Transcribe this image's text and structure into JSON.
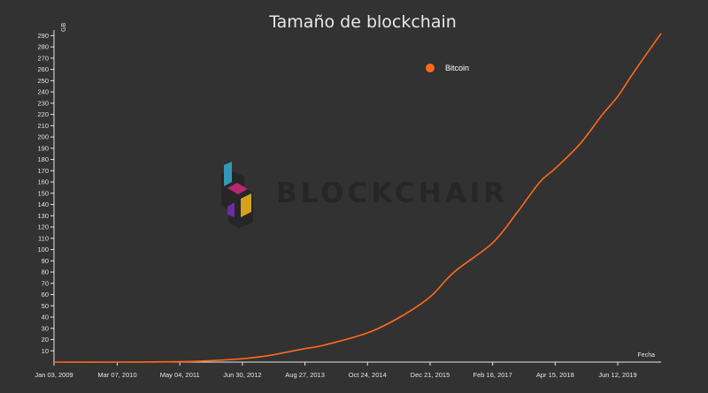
{
  "chart_data": {
    "type": "line",
    "title": "Tamaño de blockchain",
    "ylabel": "GB",
    "xlabel": "Fecha",
    "ylim": [
      0,
      295
    ],
    "yticks": [
      10,
      20,
      30,
      40,
      50,
      60,
      70,
      80,
      90,
      100,
      110,
      120,
      130,
      140,
      150,
      160,
      170,
      180,
      190,
      200,
      210,
      220,
      230,
      240,
      250,
      260,
      270,
      280,
      290
    ],
    "xlim": [
      "2009-01-03",
      "2020-03-31"
    ],
    "xtick_labels": [
      {
        "date": "2009-01-03",
        "label": "Jan 03, 2009"
      },
      {
        "date": "2010-03-07",
        "label": "Mar 07, 2010"
      },
      {
        "date": "2011-05-04",
        "label": "May 04, 2011"
      },
      {
        "date": "2012-06-30",
        "label": "Jun 30, 2012"
      },
      {
        "date": "2013-08-27",
        "label": "Aug 27, 2013"
      },
      {
        "date": "2014-10-24",
        "label": "Oct 24, 2014"
      },
      {
        "date": "2015-12-21",
        "label": "Dec 21, 2015"
      },
      {
        "date": "2017-02-16",
        "label": "Feb 16, 2017"
      },
      {
        "date": "2018-04-15",
        "label": "Apr 15, 2018"
      },
      {
        "date": "2019-06-12",
        "label": "Jun 12, 2019"
      }
    ],
    "legend": {
      "position": "top-right"
    },
    "grid": false,
    "series": [
      {
        "name": "Bitcoin",
        "color": "#ff6a1a",
        "points": [
          {
            "x": "2009-01-03",
            "y": 0
          },
          {
            "x": "2010-03-07",
            "y": 0
          },
          {
            "x": "2011-05-04",
            "y": 0.3
          },
          {
            "x": "2012-01-01",
            "y": 1.5
          },
          {
            "x": "2012-06-30",
            "y": 3
          },
          {
            "x": "2013-01-01",
            "y": 6
          },
          {
            "x": "2013-08-27",
            "y": 12
          },
          {
            "x": "2014-01-01",
            "y": 15
          },
          {
            "x": "2014-10-24",
            "y": 26
          },
          {
            "x": "2015-06-01",
            "y": 40
          },
          {
            "x": "2015-12-21",
            "y": 58
          },
          {
            "x": "2016-06-01",
            "y": 80
          },
          {
            "x": "2017-02-16",
            "y": 106
          },
          {
            "x": "2017-08-01",
            "y": 133
          },
          {
            "x": "2018-01-01",
            "y": 160
          },
          {
            "x": "2018-04-15",
            "y": 172
          },
          {
            "x": "2018-10-01",
            "y": 194
          },
          {
            "x": "2019-03-01",
            "y": 220
          },
          {
            "x": "2019-06-12",
            "y": 236
          },
          {
            "x": "2019-10-01",
            "y": 258
          },
          {
            "x": "2020-03-31",
            "y": 292
          }
        ]
      }
    ]
  },
  "watermark": {
    "text": "BLOCKCHAIR"
  }
}
